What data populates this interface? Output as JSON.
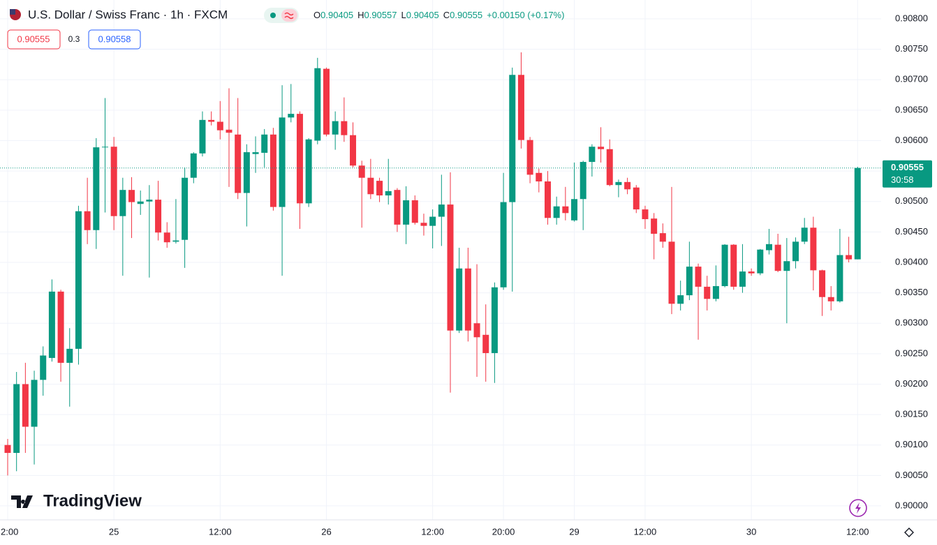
{
  "header": {
    "title": "U.S. Dollar / Swiss Franc · 1h · FXCM",
    "ohlc": [
      {
        "label": "O",
        "value": 0.90405
      },
      {
        "label": "H",
        "value": 0.90557
      },
      {
        "label": "L",
        "value": 0.90405
      },
      {
        "label": "C",
        "value": 0.90555
      }
    ],
    "change": "+0.00150 (+0.17%)",
    "bid": 0.90555,
    "spread": 0.3,
    "ask": 0.90558
  },
  "logo": "TradingView",
  "chart_data": {
    "type": "candlestick",
    "categories": [
      "2:00",
      null,
      null,
      null,
      null,
      null,
      null,
      null,
      null,
      null,
      null,
      null,
      "25",
      null,
      null,
      null,
      null,
      null,
      null,
      null,
      null,
      null,
      null,
      null,
      "12:00",
      null,
      null,
      null,
      null,
      null,
      null,
      null,
      null,
      null,
      null,
      null,
      "26",
      null,
      null,
      null,
      null,
      null,
      null,
      null,
      null,
      null,
      null,
      null,
      "12:00",
      null,
      null,
      null,
      null,
      null,
      null,
      null,
      "20:00",
      null,
      null,
      null,
      null,
      null,
      null,
      null,
      "29",
      null,
      null,
      null,
      null,
      null,
      null,
      null,
      "12:00",
      null,
      null,
      null,
      null,
      null,
      null,
      null,
      null,
      null,
      null,
      null,
      "30",
      null,
      null,
      null,
      null,
      null,
      null,
      null,
      null,
      null,
      null,
      null,
      "12:00"
    ],
    "open": [
      0.901,
      0.90087,
      0.902,
      0.9013,
      0.90207,
      0.90243,
      0.90352,
      0.90235,
      0.90258,
      0.90484,
      0.90453,
      0.90589,
      0.9059,
      0.90476,
      0.90519,
      0.90496,
      0.905,
      0.90503,
      0.90449,
      0.90434,
      0.90437,
      0.90539,
      0.90579,
      0.90634,
      0.90631,
      0.90618,
      0.9061,
      0.90514,
      0.90578,
      0.9058,
      0.9061,
      0.90491,
      0.90638,
      0.90644,
      0.90497,
      0.906,
      0.90718,
      0.9061,
      0.90632,
      0.90609,
      0.90559,
      0.90539,
      0.90534,
      0.9051,
      0.90519,
      0.90462,
      0.90502,
      0.90465,
      0.9046,
      0.90475,
      0.90495,
      0.90288,
      0.9039,
      0.903,
      0.90281,
      0.90251,
      0.90359,
      0.90499,
      0.90708,
      0.90601,
      0.90547,
      0.90533,
      0.90473,
      0.90492,
      0.90469,
      0.90504,
      0.90565,
      0.9059,
      0.90586,
      0.90527,
      0.90532,
      0.90523,
      0.90487,
      0.90472,
      0.90448,
      0.90434,
      0.90332,
      0.90346,
      0.90393,
      0.9036,
      0.9034,
      0.90361,
      0.90429,
      0.9036,
      0.90385,
      0.90382,
      0.9042,
      0.90429,
      0.90386,
      0.90402,
      0.90434,
      0.90457,
      0.90387,
      0.90343,
      0.90336,
      0.90412,
      0.90405
    ],
    "high": [
      0.9011,
      0.9022,
      0.90235,
      0.90222,
      0.90262,
      0.90372,
      0.90355,
      0.90292,
      0.90493,
      0.90539,
      0.90604,
      0.9067,
      0.90606,
      0.90539,
      0.9054,
      0.90518,
      0.90527,
      0.90534,
      0.90466,
      0.90504,
      0.90556,
      0.90581,
      0.90648,
      0.90648,
      0.90665,
      0.90686,
      0.9067,
      0.90594,
      0.90607,
      0.90619,
      0.90621,
      0.90691,
      0.90693,
      0.90648,
      0.90604,
      0.90736,
      0.9072,
      0.90648,
      0.90671,
      0.9063,
      0.90567,
      0.9057,
      0.90539,
      0.9057,
      0.90522,
      0.90525,
      0.9051,
      0.9048,
      0.90487,
      0.90544,
      0.90548,
      0.90424,
      0.90424,
      0.90397,
      0.90331,
      0.90367,
      0.90547,
      0.9072,
      0.90745,
      0.90606,
      0.90554,
      0.9055,
      0.90508,
      0.90524,
      0.90564,
      0.90567,
      0.90594,
      0.90622,
      0.90602,
      0.90536,
      0.90539,
      0.90527,
      0.90493,
      0.90481,
      0.90464,
      0.90524,
      0.9037,
      0.90434,
      0.90398,
      0.90378,
      0.90395,
      0.9043,
      0.9043,
      0.9043,
      0.9039,
      0.90422,
      0.90455,
      0.90447,
      0.9044,
      0.90441,
      0.90473,
      0.90475,
      0.90388,
      0.90361,
      0.90455,
      0.90442,
      0.90557
    ],
    "low": [
      0.9005,
      0.90057,
      0.90087,
      0.90068,
      0.90181,
      0.90237,
      0.90204,
      0.90163,
      0.90232,
      0.9043,
      0.90422,
      0.90482,
      0.90453,
      0.90378,
      0.9044,
      0.90478,
      0.90375,
      0.90436,
      0.90424,
      0.90431,
      0.90391,
      0.9053,
      0.90574,
      0.90625,
      0.90602,
      0.90524,
      0.90504,
      0.90459,
      0.90547,
      0.90556,
      0.90485,
      0.90378,
      0.9063,
      0.90455,
      0.90491,
      0.90594,
      0.90607,
      0.90585,
      0.90598,
      0.90556,
      0.90457,
      0.90504,
      0.90499,
      0.90495,
      0.9045,
      0.9043,
      0.90462,
      0.90444,
      0.90423,
      0.90427,
      0.90186,
      0.90284,
      0.9027,
      0.90212,
      0.90204,
      0.90202,
      0.90355,
      0.90352,
      0.90587,
      0.9053,
      0.90515,
      0.90462,
      0.90462,
      0.90469,
      0.90467,
      0.90453,
      0.90541,
      0.90564,
      0.90525,
      0.90507,
      0.90512,
      0.90481,
      0.90455,
      0.90405,
      0.90424,
      0.90315,
      0.90321,
      0.90338,
      0.90273,
      0.90321,
      0.90336,
      0.90359,
      0.90355,
      0.9035,
      0.90378,
      0.90379,
      0.90413,
      0.90384,
      0.903,
      0.9039,
      0.9043,
      0.90354,
      0.90312,
      0.90321,
      0.90334,
      0.904,
      0.90405
    ],
    "close": [
      0.90087,
      0.902,
      0.9013,
      0.90207,
      0.90247,
      0.90352,
      0.90235,
      0.90258,
      0.90484,
      0.90453,
      0.90589,
      0.9059,
      0.90476,
      0.90519,
      0.90499,
      0.905,
      0.90503,
      0.90449,
      0.90433,
      0.90436,
      0.90539,
      0.90579,
      0.90634,
      0.90631,
      0.90617,
      0.90613,
      0.90514,
      0.90581,
      0.90581,
      0.9061,
      0.90491,
      0.90638,
      0.90644,
      0.90497,
      0.90602,
      0.90719,
      0.9061,
      0.90632,
      0.90609,
      0.90559,
      0.90539,
      0.90512,
      0.9051,
      0.90517,
      0.90462,
      0.90502,
      0.90465,
      0.9046,
      0.90475,
      0.90495,
      0.90288,
      0.9039,
      0.90288,
      0.90277,
      0.90251,
      0.90359,
      0.90499,
      0.90708,
      0.90601,
      0.90544,
      0.90533,
      0.90473,
      0.90492,
      0.90481,
      0.90504,
      0.90565,
      0.9059,
      0.90586,
      0.90527,
      0.90532,
      0.9052,
      0.90487,
      0.90471,
      0.90447,
      0.90434,
      0.90332,
      0.90346,
      0.90393,
      0.9036,
      0.9034,
      0.90361,
      0.90429,
      0.9036,
      0.90385,
      0.90382,
      0.90421,
      0.9043,
      0.90386,
      0.90402,
      0.90434,
      0.90457,
      0.90387,
      0.90343,
      0.90336,
      0.90412,
      0.90405,
      0.90555
    ],
    "up_color": "#089981",
    "down_color": "#f23645",
    "ylim": [
      0.89977,
      0.90831
    ],
    "yticks": [
      {
        "value": 0.9,
        "label": "0.90000"
      },
      {
        "value": 0.9005,
        "label": "0.90050"
      },
      {
        "value": 0.901,
        "label": "0.90100"
      },
      {
        "value": 0.9015,
        "label": "0.90150"
      },
      {
        "value": 0.902,
        "label": "0.90200"
      },
      {
        "value": 0.9025,
        "label": "0.90250"
      },
      {
        "value": 0.903,
        "label": "0.90300"
      },
      {
        "value": 0.9035,
        "label": "0.90350"
      },
      {
        "value": 0.904,
        "label": "0.90400"
      },
      {
        "value": 0.9045,
        "label": "0.90450"
      },
      {
        "value": 0.905,
        "label": "0.90500"
      },
      {
        "value": 0.9055,
        "label": "0.90550"
      },
      {
        "value": 0.906,
        "label": "0.90600"
      },
      {
        "value": 0.9065,
        "label": "0.90650"
      },
      {
        "value": 0.907,
        "label": "0.90700"
      },
      {
        "value": 0.9075,
        "label": "0.90750"
      },
      {
        "value": 0.908,
        "label": "0.90800"
      }
    ],
    "grid": true,
    "last_price": 0.90555,
    "countdown": "30:58"
  }
}
